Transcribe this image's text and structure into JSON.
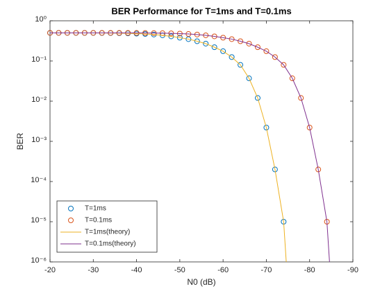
{
  "chart_data": {
    "type": "line",
    "title": "BER Performance for T=1ms and T=0.1ms",
    "xlabel": "N0 (dB)",
    "ylabel": "BER",
    "xlim": [
      -20,
      -90
    ],
    "xticks": [
      -20,
      -30,
      -40,
      -50,
      -60,
      -70,
      -80,
      -90
    ],
    "ylim": [
      1e-06,
      1
    ],
    "yscale": "log",
    "yticks": [
      {
        "value": 1e-06,
        "label": "10⁻⁶"
      },
      {
        "value": 1e-05,
        "label": "10⁻⁵"
      },
      {
        "value": 0.0001,
        "label": "10⁻⁴"
      },
      {
        "value": 0.001,
        "label": "10⁻³"
      },
      {
        "value": 0.01,
        "label": "10⁻²"
      },
      {
        "value": 0.1,
        "label": "10⁻¹"
      },
      {
        "value": 1,
        "label": "10⁰"
      }
    ],
    "legend": "lower left",
    "series": [
      {
        "name": "T=1ms",
        "color": "#0072bd",
        "style": "marker",
        "x": [
          -20,
          -22,
          -24,
          -26,
          -28,
          -30,
          -32,
          -34,
          -36,
          -38,
          -40,
          -42,
          -44,
          -46,
          -48,
          -50,
          -52,
          -54,
          -56,
          -58,
          -60,
          -62,
          -64,
          -66,
          -68,
          -70,
          -72,
          -74
        ],
        "values": [
          0.5,
          0.5,
          0.5,
          0.499,
          0.499,
          0.498,
          0.497,
          0.495,
          0.492,
          0.487,
          0.48,
          0.47,
          0.455,
          0.435,
          0.41,
          0.38,
          0.35,
          0.31,
          0.27,
          0.22,
          0.175,
          0.125,
          0.08,
          0.037,
          0.012,
          0.0022,
          0.0002,
          1e-05
        ]
      },
      {
        "name": "T=0.1ms",
        "color": "#d95319",
        "style": "marker",
        "x": [
          -20,
          -22,
          -24,
          -26,
          -28,
          -30,
          -32,
          -34,
          -36,
          -38,
          -40,
          -42,
          -44,
          -46,
          -48,
          -50,
          -52,
          -54,
          -56,
          -58,
          -60,
          -62,
          -64,
          -66,
          -68,
          -70,
          -72,
          -74,
          -76,
          -78,
          -80,
          -82,
          -84
        ],
        "values": [
          0.5,
          0.5,
          0.5,
          0.5,
          0.5,
          0.5,
          0.5,
          0.5,
          0.499,
          0.499,
          0.498,
          0.497,
          0.495,
          0.492,
          0.487,
          0.48,
          0.47,
          0.455,
          0.435,
          0.41,
          0.38,
          0.35,
          0.31,
          0.27,
          0.22,
          0.175,
          0.125,
          0.08,
          0.037,
          0.012,
          0.0022,
          0.0002,
          1e-05
        ]
      },
      {
        "name": "T=1ms(theory)",
        "color": "#edb120",
        "style": "line",
        "x": [
          -20,
          -22,
          -24,
          -26,
          -28,
          -30,
          -32,
          -34,
          -36,
          -38,
          -40,
          -42,
          -44,
          -46,
          -48,
          -50,
          -52,
          -54,
          -56,
          -58,
          -60,
          -62,
          -64,
          -66,
          -68,
          -70,
          -72,
          -74,
          -74.6
        ],
        "values": [
          0.5,
          0.5,
          0.5,
          0.499,
          0.499,
          0.498,
          0.497,
          0.495,
          0.492,
          0.487,
          0.48,
          0.47,
          0.455,
          0.435,
          0.41,
          0.38,
          0.35,
          0.31,
          0.27,
          0.22,
          0.175,
          0.125,
          0.08,
          0.037,
          0.012,
          0.0022,
          0.0002,
          1e-05,
          1e-06
        ]
      },
      {
        "name": "T=0.1ms(theory)",
        "color": "#7e2f8e",
        "style": "line",
        "x": [
          -20,
          -22,
          -24,
          -26,
          -28,
          -30,
          -32,
          -34,
          -36,
          -38,
          -40,
          -42,
          -44,
          -46,
          -48,
          -50,
          -52,
          -54,
          -56,
          -58,
          -60,
          -62,
          -64,
          -66,
          -68,
          -70,
          -72,
          -74,
          -76,
          -78,
          -80,
          -82,
          -84,
          -84.6
        ],
        "values": [
          0.5,
          0.5,
          0.5,
          0.5,
          0.5,
          0.5,
          0.5,
          0.5,
          0.499,
          0.499,
          0.498,
          0.497,
          0.495,
          0.492,
          0.487,
          0.48,
          0.47,
          0.455,
          0.435,
          0.41,
          0.38,
          0.35,
          0.31,
          0.27,
          0.22,
          0.175,
          0.125,
          0.08,
          0.037,
          0.012,
          0.0022,
          0.0002,
          1e-05,
          1e-06
        ]
      }
    ]
  }
}
